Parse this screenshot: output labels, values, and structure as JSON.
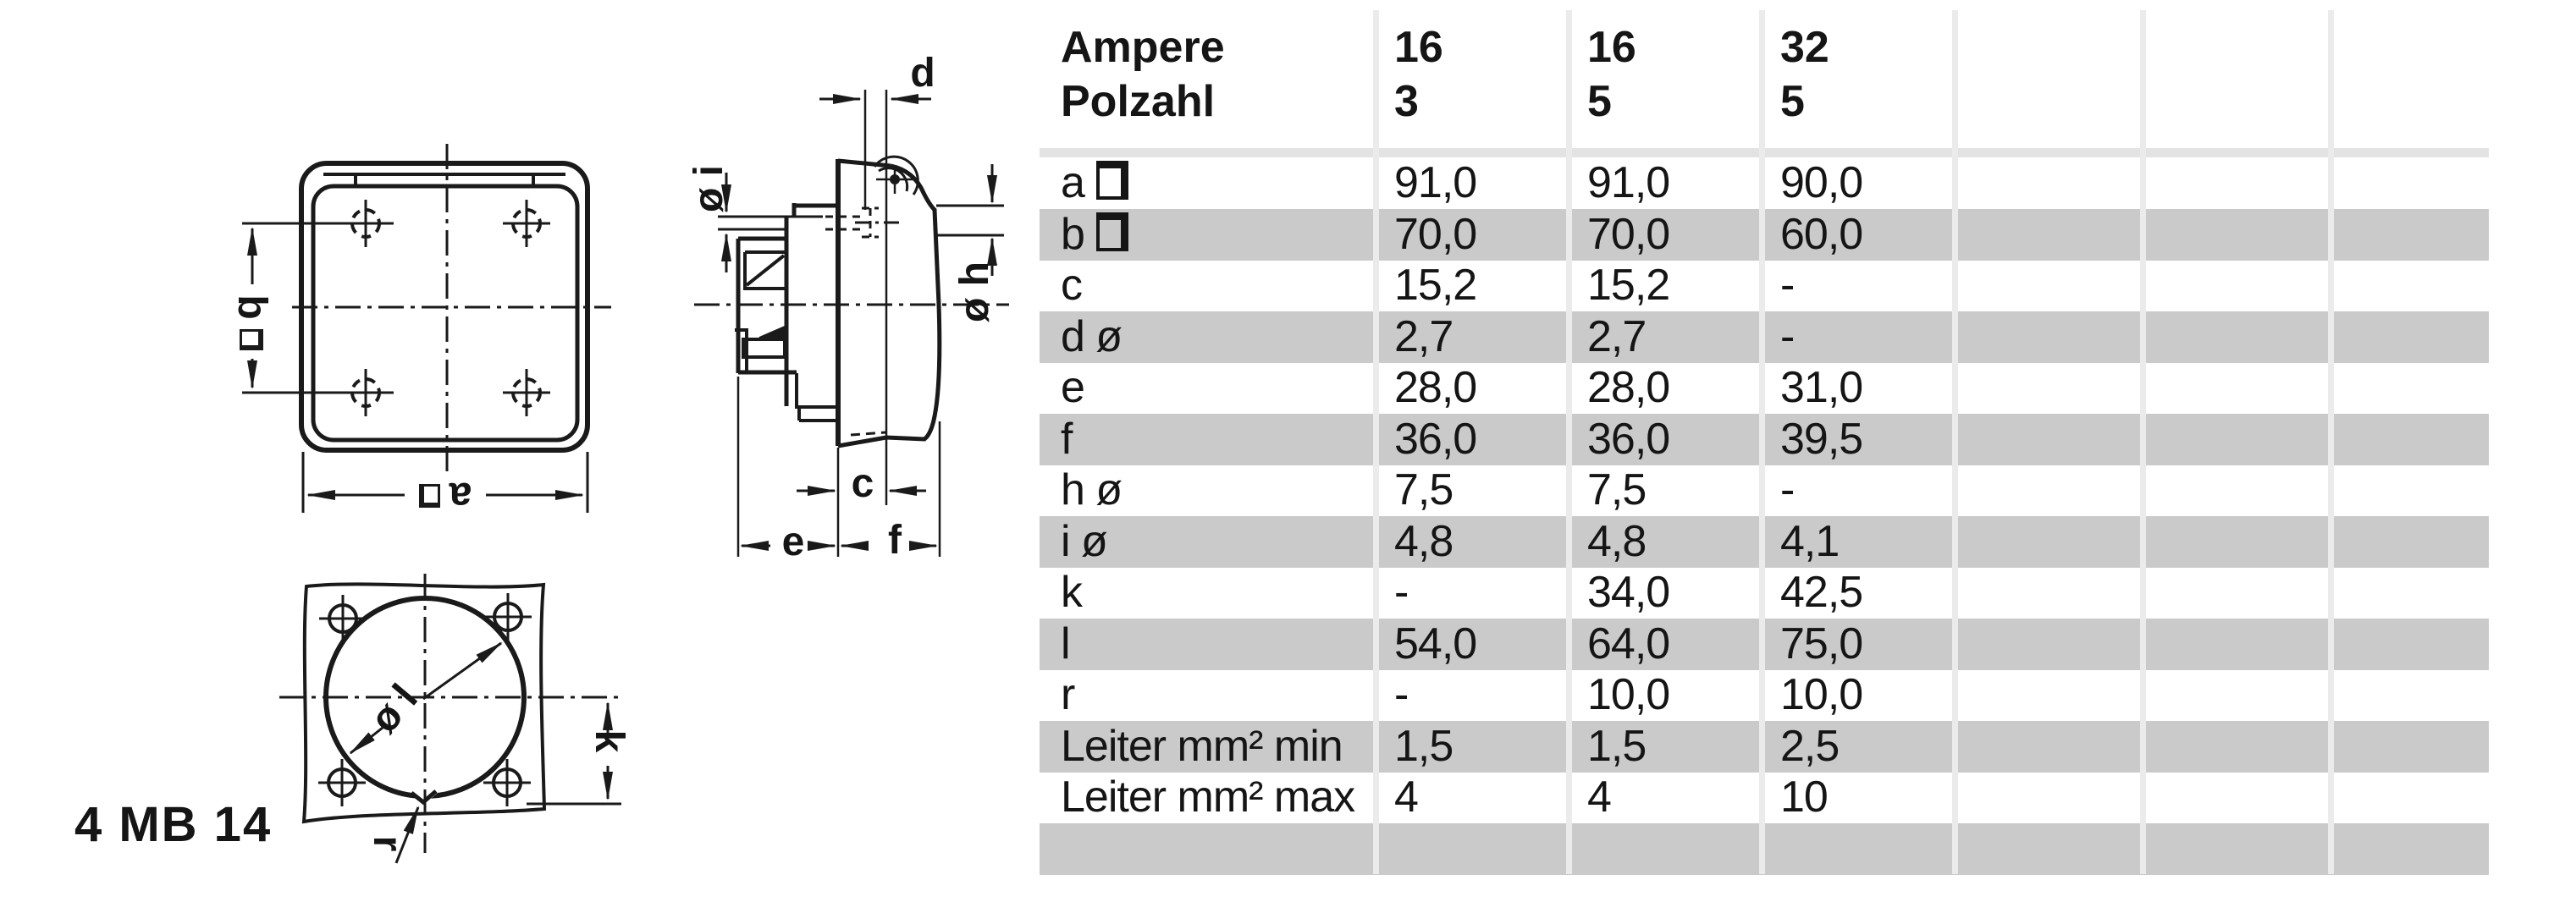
{
  "product_code": "4 MB 14",
  "drawing": {
    "labels": {
      "dim_a": "a",
      "dim_b": "b",
      "dim_c": "c",
      "dim_d": "d",
      "dim_e": "e",
      "dim_f": "f",
      "dia_h": "ø h",
      "dia_i": "ø i",
      "dia_l": "ø l",
      "dim_k": "k",
      "dim_r": "r"
    }
  },
  "table": {
    "header": {
      "row1_label": "Ampere",
      "row2_label": "Polzahl",
      "columns": [
        {
          "ampere": "16",
          "polzahl": "3"
        },
        {
          "ampere": "16",
          "polzahl": "5"
        },
        {
          "ampere": "32",
          "polzahl": "5"
        }
      ]
    },
    "rows": [
      {
        "label": "a",
        "square": true,
        "values": [
          "91,0",
          "91,0",
          "90,0"
        ]
      },
      {
        "label": "b",
        "square": true,
        "values": [
          "70,0",
          "70,0",
          "60,0"
        ]
      },
      {
        "label": "c",
        "values": [
          "15,2",
          "15,2",
          "-"
        ]
      },
      {
        "label": "d ø",
        "values": [
          "2,7",
          "2,7",
          "-"
        ]
      },
      {
        "label": "e",
        "values": [
          "28,0",
          "28,0",
          "31,0"
        ]
      },
      {
        "label": "f",
        "values": [
          "36,0",
          "36,0",
          "39,5"
        ]
      },
      {
        "label": "h ø",
        "values": [
          "7,5",
          "7,5",
          "-"
        ]
      },
      {
        "label": "i ø",
        "values": [
          "4,8",
          "4,8",
          "4,1"
        ]
      },
      {
        "label": "k",
        "values": [
          "-",
          "34,0",
          "42,5"
        ]
      },
      {
        "label": "l",
        "values": [
          "54,0",
          "64,0",
          "75,0"
        ]
      },
      {
        "label": "r",
        "values": [
          "-",
          "10,0",
          "10,0"
        ]
      },
      {
        "label": "Leiter mm² min",
        "values": [
          "1,5",
          "1,5",
          "2,5"
        ]
      },
      {
        "label": "Leiter mm² max",
        "values": [
          "4",
          "4",
          "10"
        ]
      }
    ]
  }
}
